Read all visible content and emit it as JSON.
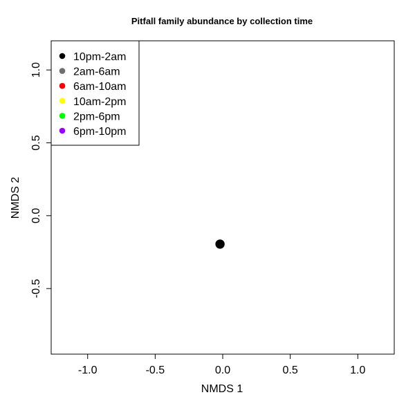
{
  "chart_data": {
    "type": "scatter",
    "title": "Pitfall family abundance by collection time",
    "xlabel": "NMDS 1",
    "ylabel": "NMDS 2",
    "xlim": [
      -1.27,
      1.27
    ],
    "ylim": [
      -0.95,
      1.2
    ],
    "x_ticks": [
      -1.0,
      -0.5,
      0.0,
      0.5,
      1.0
    ],
    "x_tick_labels": [
      "-1.0",
      "-0.5",
      "0.0",
      "0.5",
      "1.0"
    ],
    "y_ticks": [
      -0.5,
      0.0,
      0.5,
      1.0
    ],
    "y_tick_labels": [
      "-0.5",
      "0.0",
      "0.5",
      "1.0"
    ],
    "grid": false,
    "legend_position": "top-left",
    "series": [
      {
        "name": "10pm-2am",
        "color": "#000000",
        "points": [
          [
            -0.02,
            -0.195
          ]
        ]
      },
      {
        "name": "2am-6am",
        "color": "#6e6e6e",
        "points": [
          [
            -0.02,
            -0.195
          ]
        ]
      },
      {
        "name": "6am-10am",
        "color": "#ff0000",
        "points": [
          [
            -0.02,
            -0.195
          ]
        ]
      },
      {
        "name": "10am-2pm",
        "color": "#ffff00",
        "points": [
          [
            -0.02,
            -0.195
          ]
        ]
      },
      {
        "name": "2pm-6pm",
        "color": "#00ff00",
        "points": [
          [
            -0.02,
            -0.195
          ]
        ]
      },
      {
        "name": "6pm-10pm",
        "color": "#9900ff",
        "points": [
          [
            -0.02,
            -0.195
          ]
        ]
      }
    ]
  }
}
